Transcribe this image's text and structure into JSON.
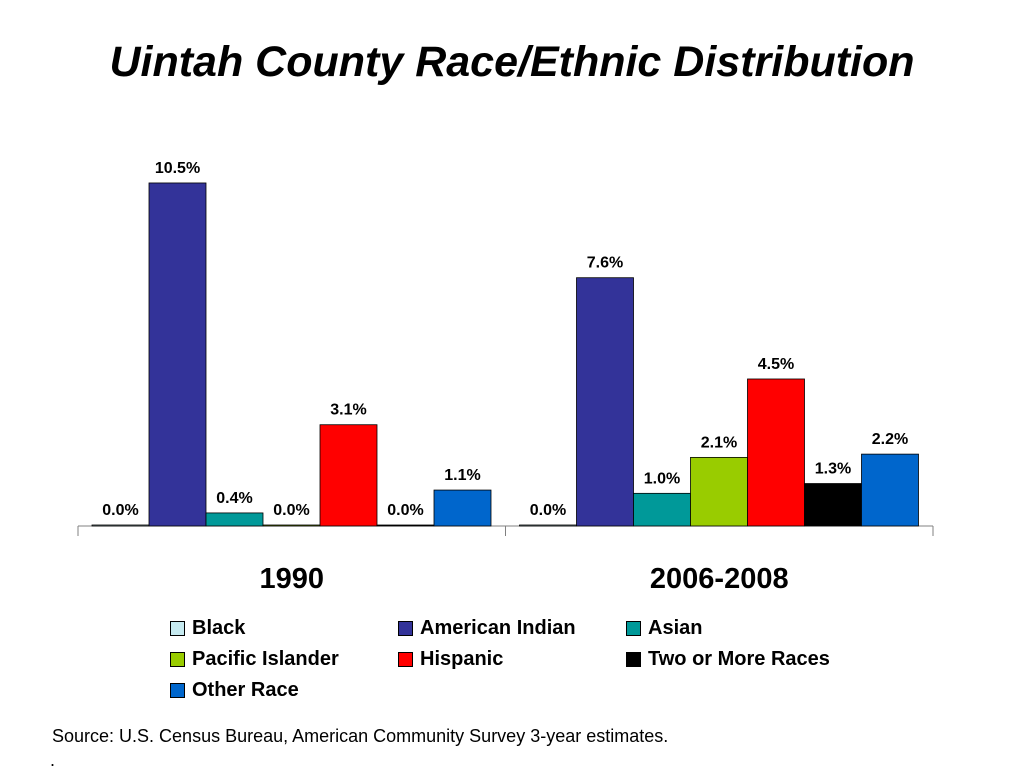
{
  "title": "Uintah County Race/Ethnic Distribution",
  "source": "Source: U.S. Census Bureau, American Community Survey 3-year estimates.",
  "footnote_mark": ".",
  "chart_data": {
    "type": "bar",
    "title": "Uintah County Race/Ethnic Distribution",
    "categories": [
      "1990",
      "2006-2008"
    ],
    "ylim": [
      0,
      11
    ],
    "grid": false,
    "legend_position": "bottom",
    "series": [
      {
        "name": "Black",
        "color": "#c6eaf0",
        "values": [
          0.0,
          0.0
        ],
        "labels": [
          "0.0%",
          "0.0%"
        ]
      },
      {
        "name": "American Indian",
        "color": "#333399",
        "values": [
          10.5,
          7.6
        ],
        "labels": [
          "10.5%",
          "7.6%"
        ]
      },
      {
        "name": "Asian",
        "color": "#009999",
        "values": [
          0.4,
          1.0
        ],
        "labels": [
          "0.4%",
          "1.0%"
        ]
      },
      {
        "name": "Pacific Islander",
        "color": "#99cc00",
        "values": [
          0.0,
          2.1
        ],
        "labels": [
          "0.0%",
          "2.1%"
        ]
      },
      {
        "name": "Hispanic",
        "color": "#ff0000",
        "values": [
          3.1,
          4.5
        ],
        "labels": [
          "3.1%",
          "4.5%"
        ]
      },
      {
        "name": "Two or More Races",
        "color": "#000000",
        "values": [
          0.0,
          1.3
        ],
        "labels": [
          "0.0%",
          "1.3%"
        ]
      },
      {
        "name": "Other Race",
        "color": "#0066cc",
        "values": [
          1.1,
          2.2
        ],
        "labels": [
          "1.1%",
          "2.2%"
        ]
      }
    ]
  }
}
